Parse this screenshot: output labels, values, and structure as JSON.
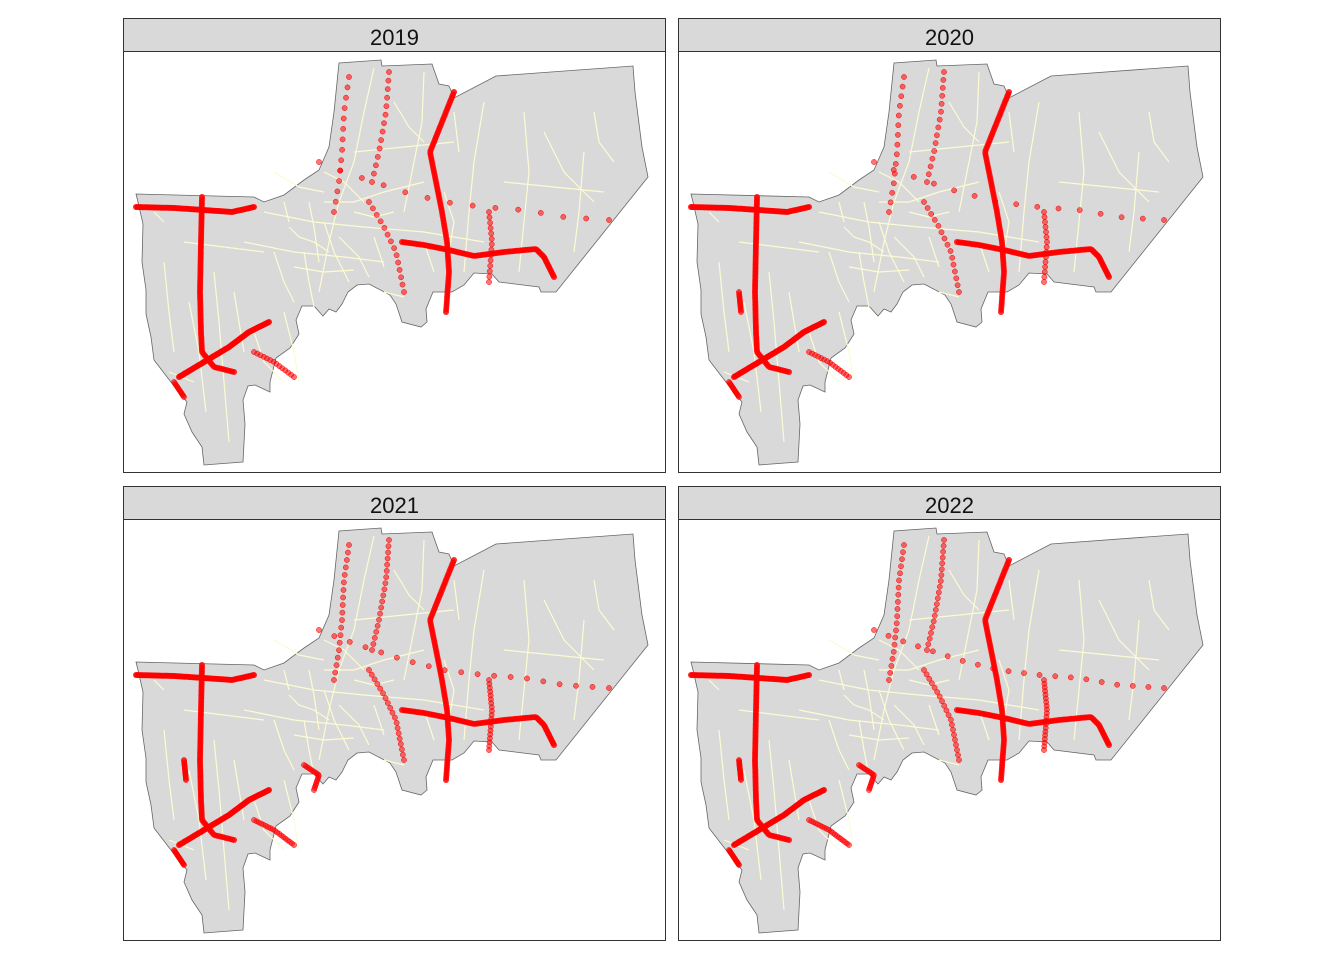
{
  "figure": {
    "panels": [
      {
        "title": "2019",
        "intensity": 0.55
      },
      {
        "title": "2020",
        "intensity": 0.65
      },
      {
        "title": "2021",
        "intensity": 0.9
      },
      {
        "title": "2022",
        "intensity": 1.0
      }
    ]
  },
  "colors": {
    "land": "#d9d9d9",
    "boundary": "#666666",
    "roads": "#fdfbd2",
    "points": "#ff0000",
    "strip": "#d9d9d9"
  }
}
